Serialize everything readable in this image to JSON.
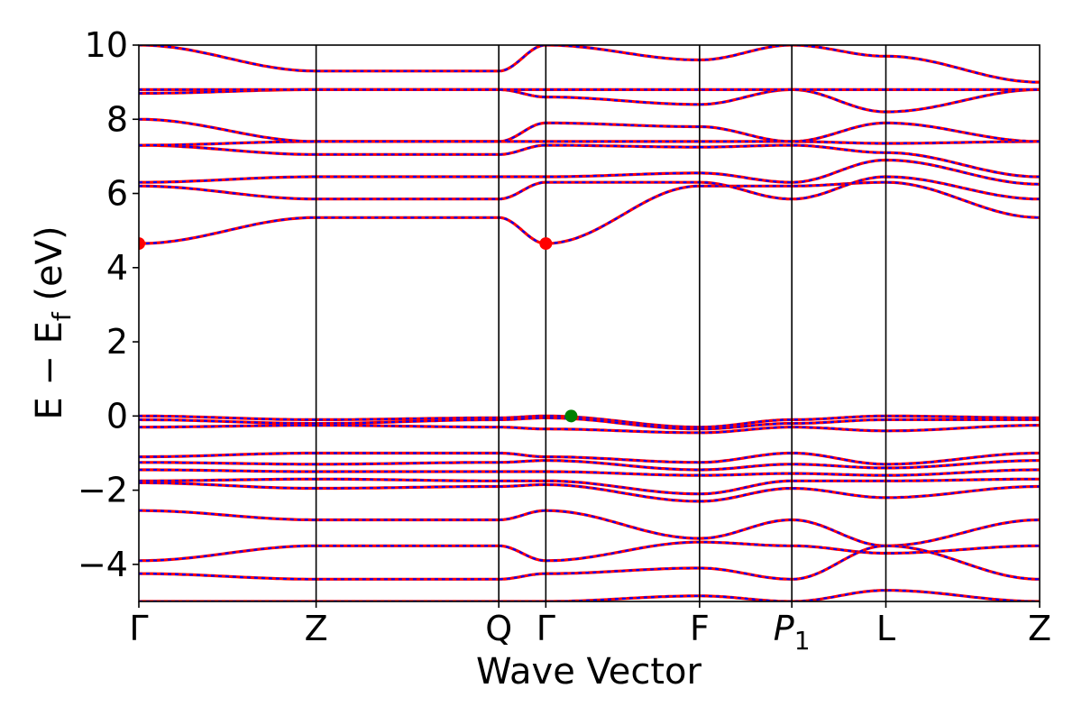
{
  "chart_data": {
    "type": "line",
    "title": "",
    "xlabel": "Wave Vector",
    "ylabel": "E − E",
    "ylabel_sub": "f",
    "ylabel_unit": "(eV)",
    "ylim": [
      -5,
      10
    ],
    "yticks": [
      -4,
      -2,
      0,
      2,
      4,
      6,
      8,
      10
    ],
    "ytick_labels": [
      "−4",
      "−2",
      "0",
      "2",
      "4",
      "6",
      "8",
      "10"
    ],
    "xlim": [
      0,
      4.98
    ],
    "kpoints": [
      {
        "label": "Γ",
        "x": 0.0
      },
      {
        "label": "Z",
        "x": 0.98
      },
      {
        "label": "Q",
        "x": 1.99
      },
      {
        "label": "Γ",
        "x": 2.25
      },
      {
        "label": "F",
        "x": 3.1
      },
      {
        "label": "P",
        "sub": "1",
        "x": 3.61
      },
      {
        "label": "L",
        "x": 4.13
      },
      {
        "label": "Z",
        "x": 4.98
      }
    ],
    "series_colors": {
      "solid": "#ff0000",
      "dashed": "#0000ff"
    },
    "markers": [
      {
        "name": "conduction band minimum",
        "x": 0.0,
        "y": 4.65,
        "color": "#ff0000"
      },
      {
        "name": "conduction band minimum",
        "x": 2.25,
        "y": 4.65,
        "color": "#ff0000"
      },
      {
        "name": "valence band maximum",
        "x": 2.39,
        "y": 0.0,
        "color": "#008000"
      }
    ],
    "bands": [
      [
        4.65,
        5.35,
        5.35,
        4.65,
        6.2,
        6.2,
        6.3,
        5.35
      ],
      [
        6.2,
        5.85,
        5.85,
        6.3,
        6.3,
        5.85,
        6.45,
        5.85
      ],
      [
        6.3,
        6.45,
        6.45,
        6.45,
        6.55,
        6.3,
        6.9,
        6.25
      ],
      [
        7.3,
        7.05,
        7.05,
        7.3,
        7.25,
        7.3,
        7.1,
        6.45
      ],
      [
        7.3,
        7.4,
        7.4,
        7.4,
        7.4,
        7.4,
        7.35,
        7.4
      ],
      [
        8.0,
        7.4,
        7.4,
        7.9,
        7.8,
        7.4,
        7.9,
        7.4
      ],
      [
        8.7,
        8.8,
        8.8,
        8.6,
        8.4,
        8.8,
        8.2,
        8.8
      ],
      [
        8.8,
        8.8,
        8.8,
        8.8,
        8.8,
        8.8,
        8.8,
        8.8
      ],
      [
        10.0,
        9.3,
        9.3,
        10.0,
        9.6,
        10.0,
        9.7,
        9.0
      ],
      [
        0.0,
        -0.1,
        -0.05,
        0.0,
        -0.3,
        -0.1,
        0.0,
        -0.05
      ],
      [
        -0.1,
        -0.2,
        -0.1,
        -0.05,
        -0.35,
        -0.2,
        -0.1,
        -0.1
      ],
      [
        -0.3,
        -0.25,
        -0.3,
        -0.35,
        -0.45,
        -0.3,
        -0.4,
        -0.25
      ],
      [
        -1.1,
        -1.0,
        -1.0,
        -1.1,
        -1.25,
        -1.0,
        -1.3,
        -1.0
      ],
      [
        -1.25,
        -1.3,
        -1.25,
        -1.2,
        -1.45,
        -1.3,
        -1.4,
        -1.2
      ],
      [
        -1.45,
        -1.5,
        -1.5,
        -1.5,
        -1.6,
        -1.55,
        -1.6,
        -1.45
      ],
      [
        -1.75,
        -1.7,
        -1.75,
        -1.75,
        -2.1,
        -1.75,
        -1.75,
        -1.7
      ],
      [
        -1.8,
        -1.95,
        -1.9,
        -1.85,
        -2.3,
        -1.95,
        -2.2,
        -1.9
      ],
      [
        -2.55,
        -2.8,
        -2.8,
        -2.55,
        -3.3,
        -2.8,
        -3.5,
        -2.8
      ],
      [
        -3.9,
        -3.5,
        -3.5,
        -3.9,
        -3.4,
        -3.5,
        -3.7,
        -3.5
      ],
      [
        -4.25,
        -4.4,
        -4.4,
        -4.25,
        -4.1,
        -4.4,
        -3.5,
        -4.4
      ],
      [
        -5.0,
        -5.0,
        -5.0,
        -5.0,
        -4.85,
        -5.0,
        -4.7,
        -5.0
      ]
    ]
  }
}
